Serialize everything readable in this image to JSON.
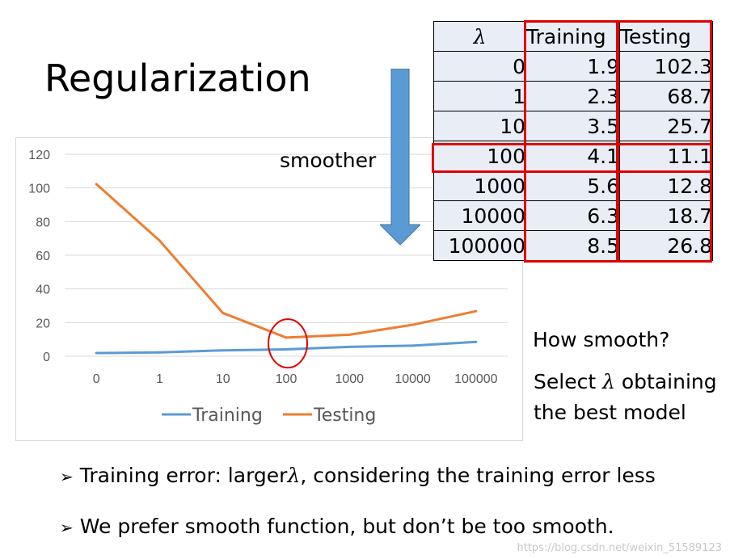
{
  "slide": {
    "title": "Regularization",
    "arrow_label": "smoother",
    "side_question": "How smooth?",
    "side_select_pre": "Select ",
    "side_select_post": " obtaining",
    "side_select_line2": "the best model",
    "lambda_symbol": "λ",
    "bullet1_pre": "Training error: larger",
    "bullet1_post": ", considering the training error less",
    "bullet2": "We prefer smooth function, but don’t be too smooth.",
    "bullet_marker": "➢",
    "watermark": "https://blog.csdn.net/weixin_51589123"
  },
  "table": {
    "headers": [
      "λ",
      "Training",
      "Testing"
    ],
    "rows": [
      [
        "0",
        "1.9",
        "102.3"
      ],
      [
        "1",
        "2.3",
        "68.7"
      ],
      [
        "10",
        "3.5",
        "25.7"
      ],
      [
        "100",
        "4.1",
        "11.1"
      ],
      [
        "1000",
        "5.6",
        "12.8"
      ],
      [
        "10000",
        "6.3",
        "18.7"
      ],
      [
        "100000",
        "8.5",
        "26.8"
      ]
    ]
  },
  "chart_data": {
    "type": "line",
    "categories": [
      "0",
      "1",
      "10",
      "100",
      "1000",
      "10000",
      "100000"
    ],
    "series": [
      {
        "name": "Training",
        "values": [
          1.9,
          2.3,
          3.5,
          4.1,
          5.6,
          6.3,
          8.5
        ],
        "color": "#5b9bd5"
      },
      {
        "name": "Testing",
        "values": [
          102.3,
          68.7,
          25.7,
          11.1,
          12.8,
          18.7,
          26.8
        ],
        "color": "#ed7d31"
      }
    ],
    "yticks": [
      "0",
      "20",
      "40",
      "60",
      "80",
      "100",
      "120"
    ],
    "ylim": [
      0,
      120
    ],
    "grid": true,
    "legend_position": "bottom",
    "highlight_category": "100",
    "highlight_color": "#e00000"
  }
}
